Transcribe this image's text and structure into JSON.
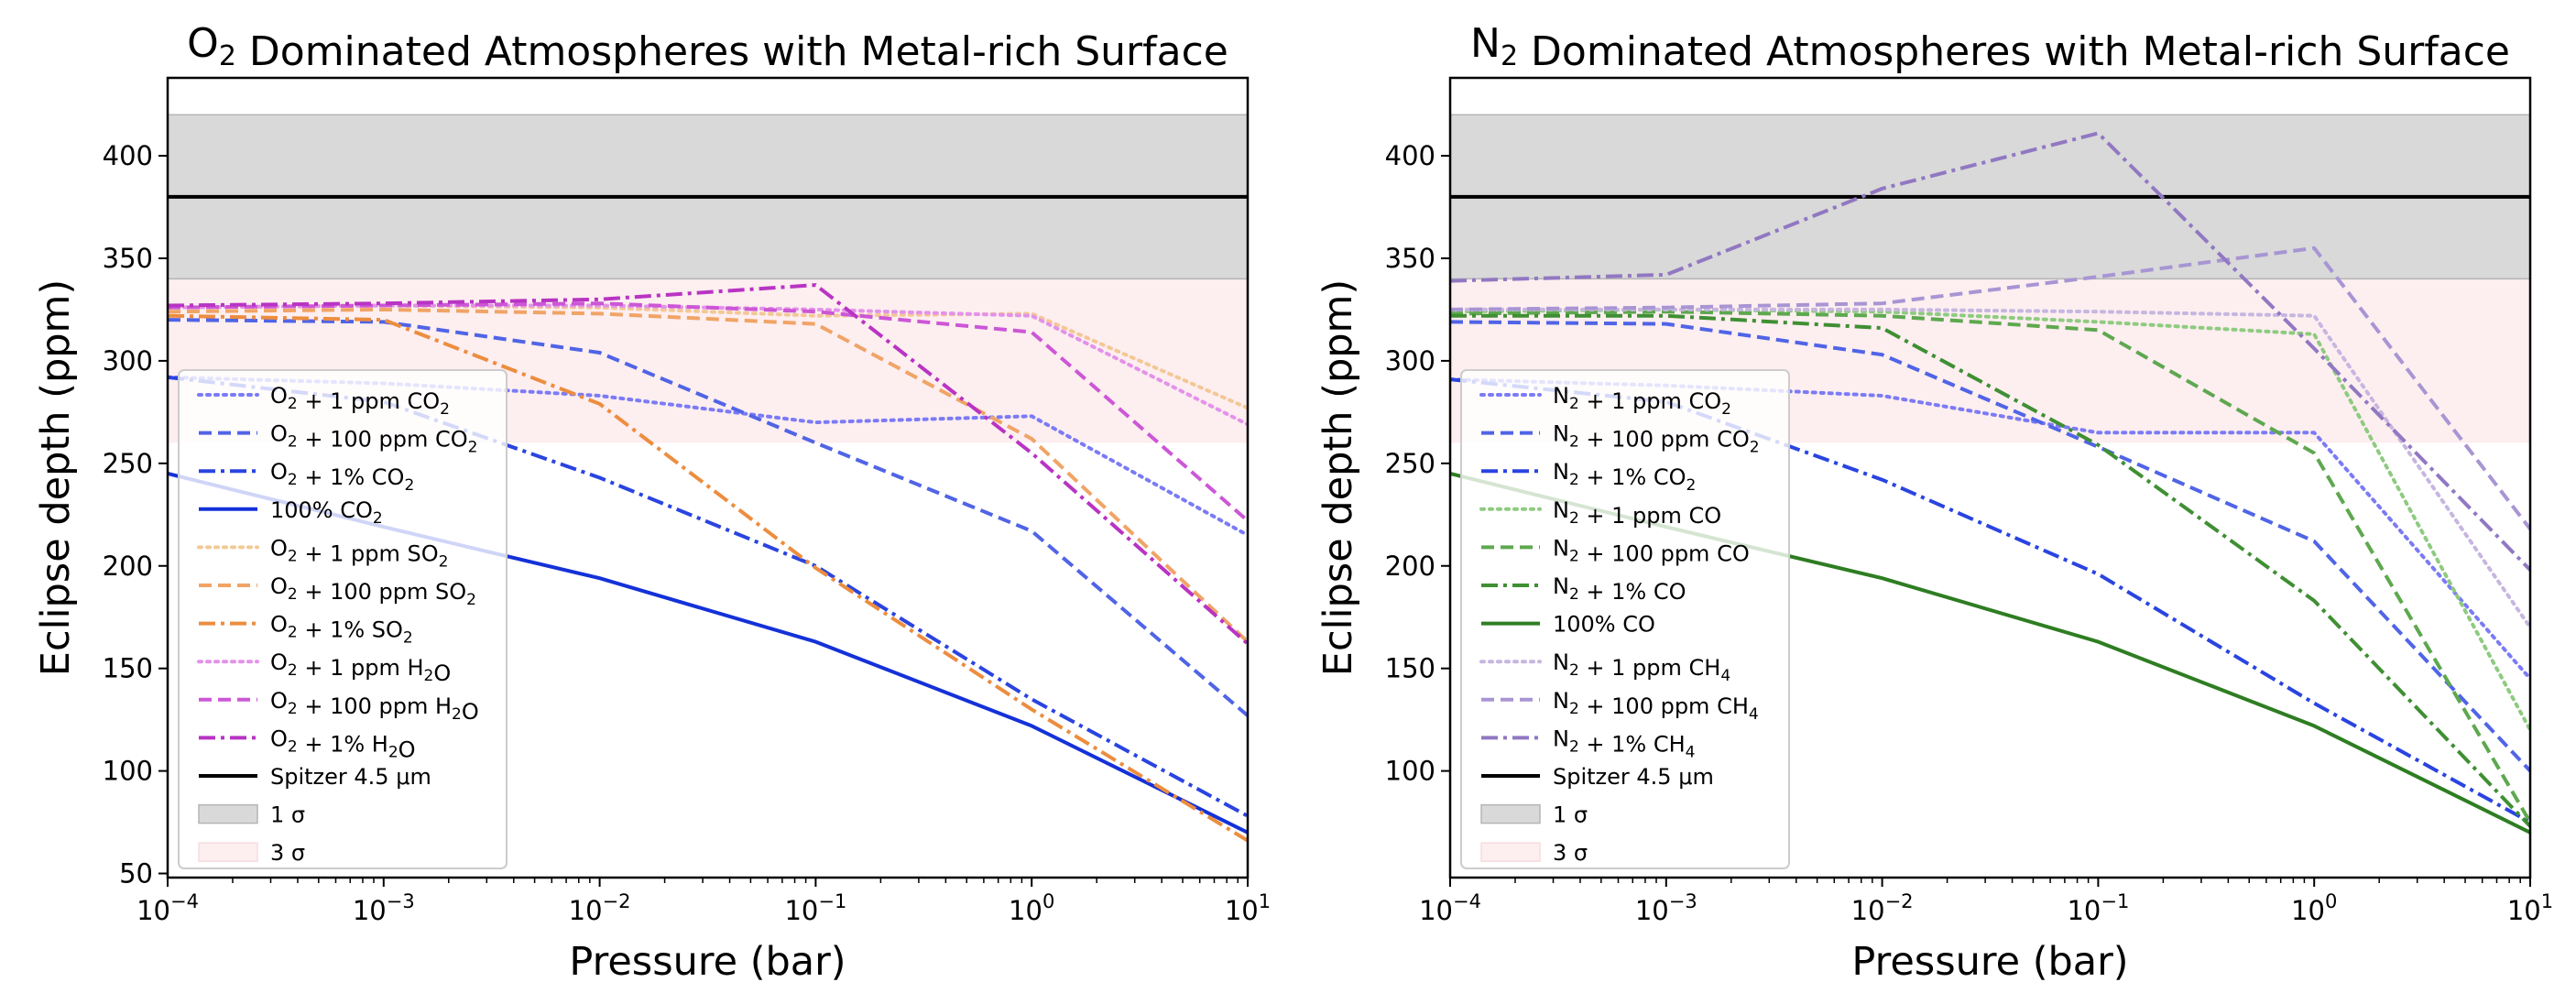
{
  "chart_data": [
    {
      "type": "line",
      "title": "O2 Dominated Atmospheres with Metal-rich Surface",
      "xlabel": "Pressure (bar)",
      "ylabel": "Eclipse depth (ppm)",
      "xscale": "log",
      "xlim": [
        0.0001,
        10
      ],
      "ylim": [
        48,
        438
      ],
      "x_ticks": [
        0.0001,
        0.001,
        0.01,
        0.1,
        1,
        10
      ],
      "x_tick_labels": [
        "10−4",
        "10−3",
        "10−2",
        "10−1",
        "100",
        "101"
      ],
      "y_ticks": [
        50,
        100,
        150,
        200,
        250,
        300,
        350,
        400
      ],
      "y_tick_labels": [
        "50",
        "100",
        "150",
        "200",
        "250",
        "300",
        "350",
        "400"
      ],
      "legend_position": "lower-left",
      "x": [
        0.0001,
        0.001,
        0.01,
        0.1,
        1,
        10
      ],
      "observation": {
        "name": "Spitzer 4.5 μm",
        "value": 380,
        "sigma1": [
          340,
          420
        ],
        "sigma3": [
          260,
          340
        ]
      },
      "band_labels": [
        "1 σ",
        "3 σ"
      ],
      "series": [
        {
          "name": "O2 + 1 ppm CO2",
          "color": "#7b7bf5",
          "dash": "dot",
          "values": [
            292,
            289,
            283,
            270,
            273,
            215
          ]
        },
        {
          "name": "O2 + 100 ppm CO2",
          "color": "#5064e6",
          "dash": "dash",
          "values": [
            320,
            319,
            304,
            260,
            217,
            127
          ]
        },
        {
          "name": "O2 + 1% CO2",
          "color": "#2a44e0",
          "dash": "dashdot",
          "values": [
            292,
            280,
            243,
            200,
            135,
            78
          ]
        },
        {
          "name": "100% CO2",
          "color": "#1431d8",
          "dash": "solid",
          "values": [
            245,
            219,
            194,
            163,
            122,
            70
          ]
        },
        {
          "name": "O2 + 1 ppm SO2",
          "color": "#f3c896",
          "dash": "dot",
          "values": [
            326,
            327,
            326,
            322,
            323,
            277
          ]
        },
        {
          "name": "O2 + 100 ppm SO2",
          "color": "#f0a466",
          "dash": "dash",
          "values": [
            324,
            325,
            323,
            318,
            262,
            163
          ]
        },
        {
          "name": "O2 + 1% SO2",
          "color": "#ec8d3f",
          "dash": "dashdot",
          "values": [
            322,
            320,
            279,
            199,
            130,
            66
          ]
        },
        {
          "name": "O2 + 1 ppm H2O",
          "color": "#e392ea",
          "dash": "dot",
          "values": [
            326,
            327,
            327,
            325,
            322,
            269
          ]
        },
        {
          "name": "O2 + 100 ppm H2O",
          "color": "#cc57d6",
          "dash": "dash",
          "values": [
            326,
            327,
            328,
            324,
            314,
            222
          ]
        },
        {
          "name": "O2 + 1% H2O",
          "color": "#b834c3",
          "dash": "dashdot",
          "values": [
            327,
            328,
            330,
            337,
            255,
            162
          ]
        }
      ]
    },
    {
      "type": "line",
      "title": "N2 Dominated Atmospheres with Metal-rich Surface",
      "xlabel": "Pressure (bar)",
      "ylabel": "Eclipse depth (ppm)",
      "xscale": "log",
      "xlim": [
        0.0001,
        10
      ],
      "ylim": [
        48,
        438
      ],
      "x_ticks": [
        0.0001,
        0.001,
        0.01,
        0.1,
        1,
        10
      ],
      "x_tick_labels": [
        "10−4",
        "10−3",
        "10−2",
        "10−1",
        "100",
        "101"
      ],
      "y_ticks": [
        100,
        150,
        200,
        250,
        300,
        350,
        400
      ],
      "y_tick_labels": [
        "100",
        "150",
        "200",
        "250",
        "300",
        "350",
        "400"
      ],
      "legend_position": "lower-left",
      "x": [
        0.0001,
        0.001,
        0.01,
        0.1,
        1,
        10
      ],
      "observation": {
        "name": "Spitzer 4.5 μm",
        "value": 380,
        "sigma1": [
          340,
          420
        ],
        "sigma3": [
          260,
          340
        ]
      },
      "band_labels": [
        "1 σ",
        "3 σ"
      ],
      "series": [
        {
          "name": "N2 + 1 ppm CO2",
          "color": "#7b7bf5",
          "dash": "dot",
          "values": [
            291,
            288,
            283,
            265,
            265,
            145
          ]
        },
        {
          "name": "N2 + 100 ppm CO2",
          "color": "#5064e6",
          "dash": "dash",
          "values": [
            319,
            318,
            303,
            258,
            212,
            100
          ]
        },
        {
          "name": "N2 + 1% CO2",
          "color": "#2a44e0",
          "dash": "dashdot",
          "values": [
            291,
            280,
            242,
            196,
            133,
            75
          ]
        },
        {
          "name": "N2 + 1 ppm CO",
          "color": "#8ecb80",
          "dash": "dot",
          "values": [
            324,
            325,
            324,
            319,
            313,
            120
          ]
        },
        {
          "name": "N2 + 100 ppm CO",
          "color": "#5ea84f",
          "dash": "dash",
          "values": [
            323,
            324,
            322,
            315,
            255,
            75
          ]
        },
        {
          "name": "N2 + 1% CO",
          "color": "#3f8f33",
          "dash": "dashdot",
          "values": [
            322,
            322,
            316,
            259,
            183,
            73
          ]
        },
        {
          "name": "100% CO",
          "color": "#2e7d22",
          "dash": "solid",
          "values": [
            245,
            219,
            194,
            163,
            122,
            70
          ]
        },
        {
          "name": "N2 + 1 ppm CH4",
          "color": "#c6b6e0",
          "dash": "dot",
          "values": [
            325,
            325,
            325,
            324,
            322,
            170
          ]
        },
        {
          "name": "N2 + 100 ppm CH4",
          "color": "#a895d3",
          "dash": "dash",
          "values": [
            325,
            326,
            328,
            341,
            355,
            218
          ]
        },
        {
          "name": "N2 + 1% CH4",
          "color": "#9178c2",
          "dash": "dashdot",
          "values": [
            339,
            342,
            384,
            411,
            306,
            198
          ]
        }
      ]
    }
  ]
}
